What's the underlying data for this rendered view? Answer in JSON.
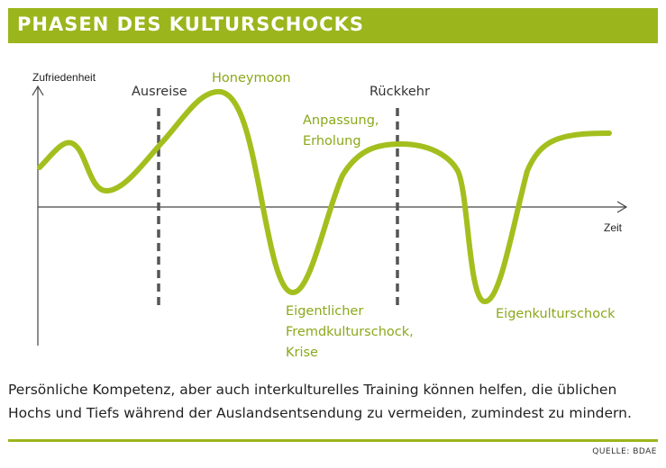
{
  "title": "PHASEN DES KULTURSCHOCKS",
  "axes": {
    "y_label": "Zufriedenheit",
    "x_label": "Zeit"
  },
  "markers": [
    {
      "id": "ausreise",
      "label": "Ausreise"
    },
    {
      "id": "rueckkehr",
      "label": "Rückkehr"
    }
  ],
  "phases": {
    "honeymoon": [
      "Honeymoon"
    ],
    "anpassung": [
      "Anpassung,",
      "Erholung"
    ],
    "fremdkulturschock": [
      "Eigentlicher",
      "Fremdkulturschock,",
      "Krise"
    ],
    "eigenkulturschock": [
      "Eigenkulturschock"
    ]
  },
  "caption": "Persönliche Kompetenz, aber auch interkulturelles Training können helfen, die üblichen Hochs und Tiefs während der Auslandsentsendung zu vermeiden, zumindest zu mindern.",
  "source": "QUELLE: BDAE",
  "colors": {
    "accent": "#9bb51c",
    "curve": "#a3bf1e",
    "axis": "#444444",
    "text": "#222222",
    "phase_text": "#8aa81a"
  }
}
